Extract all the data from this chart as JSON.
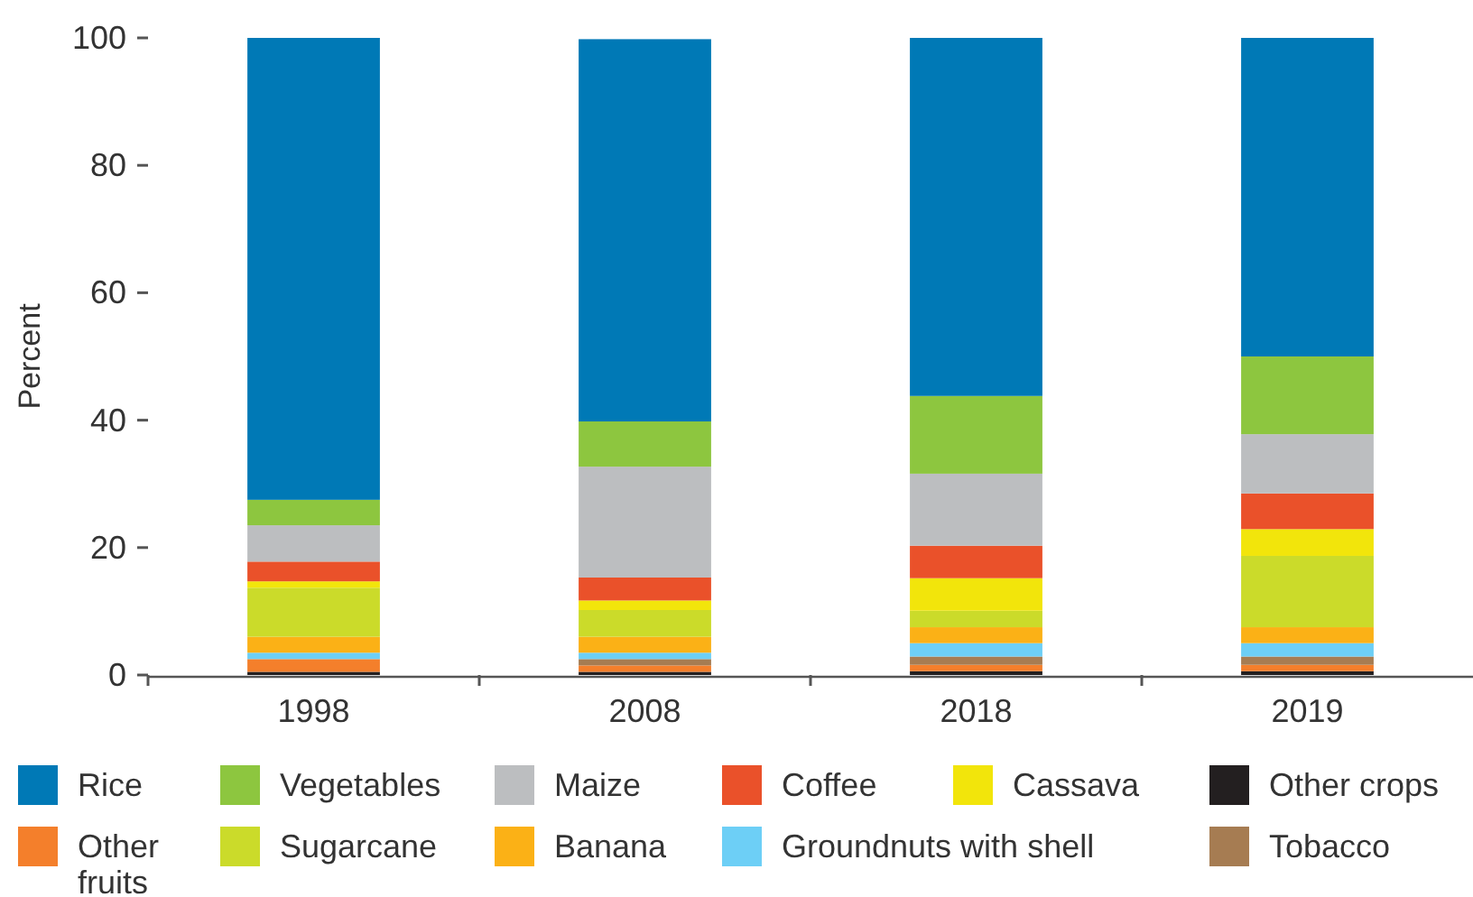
{
  "chart_data": {
    "type": "bar",
    "stacked": true,
    "ylabel": "Percent",
    "categories": [
      "1998",
      "2008",
      "2018",
      "2019"
    ],
    "ylim": [
      0,
      100
    ],
    "yticks": [
      0,
      20,
      40,
      60,
      80,
      100
    ],
    "grid": false,
    "legend": "bottom",
    "series": [
      {
        "name": "Other crops",
        "color": "#231f20",
        "values": [
          0.5,
          0.5,
          0.6,
          0.6
        ]
      },
      {
        "name": "Other fruits",
        "color": "#f47f2b",
        "values": [
          2,
          1,
          1,
          1
        ]
      },
      {
        "name": "Tobacco",
        "color": "#a67c52",
        "values": [
          0,
          1,
          1.3,
          1.3
        ]
      },
      {
        "name": "Groundnuts with shell",
        "color": "#6dcff6",
        "values": [
          1,
          1,
          2.1,
          2.1
        ]
      },
      {
        "name": "Banana",
        "color": "#fbb116",
        "values": [
          2.5,
          2.5,
          2.5,
          2.5
        ]
      },
      {
        "name": "Sugarcane",
        "color": "#cbdb2a",
        "values": [
          7.7,
          4.2,
          2.6,
          11.2
        ]
      },
      {
        "name": "Cassava",
        "color": "#f2e50b",
        "values": [
          1,
          1.5,
          5.1,
          4.2
        ]
      },
      {
        "name": "Coffee",
        "color": "#ea512a",
        "values": [
          3.1,
          3.6,
          5.1,
          5.6
        ]
      },
      {
        "name": "Maize",
        "color": "#bcbec0",
        "values": [
          5.7,
          17.4,
          11.3,
          9.3
        ]
      },
      {
        "name": "Vegetables",
        "color": "#8dc63f",
        "values": [
          4,
          7.1,
          12.2,
          12.2
        ]
      },
      {
        "name": "Rice",
        "color": "#0079b6",
        "values": [
          72.5,
          60,
          56.2,
          50
        ]
      }
    ]
  }
}
